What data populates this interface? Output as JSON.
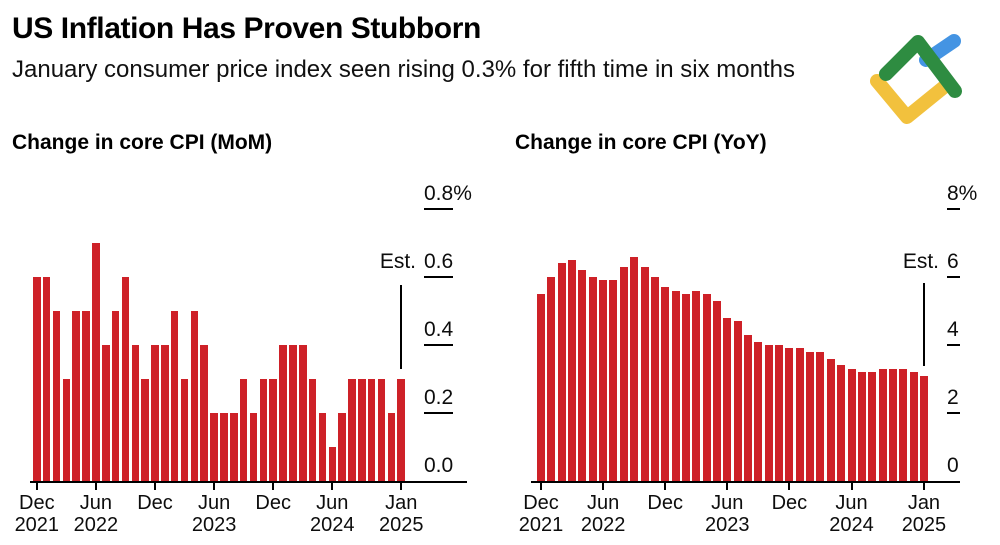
{
  "header": {
    "title": "US Inflation Has Proven Stubborn",
    "subtitle": "January consumer price index seen rising 0.3% for fifth time in six months"
  },
  "logo": {
    "name": "litefinance-watermark",
    "colors": {
      "green": "#2e8c41",
      "blue": "#4494e3",
      "yellow": "#f2c13d"
    }
  },
  "colors": {
    "bar_red": "#ce2128",
    "axis_black": "#000000",
    "background": "#ffffff"
  },
  "chart_data": [
    {
      "type": "bar",
      "title": "Change in core CPI (MoM)",
      "unit": "percent, month-over-month",
      "ylim": [
        0,
        0.8
      ],
      "grid": false,
      "legend": "none",
      "bar_color": "#ce2128",
      "categories": [
        "Dec 2021",
        "Jan 2022",
        "Feb 2022",
        "Mar 2022",
        "Apr 2022",
        "May 2022",
        "Jun 2022",
        "Jul 2022",
        "Aug 2022",
        "Sep 2022",
        "Oct 2022",
        "Nov 2022",
        "Dec 2022",
        "Jan 2023",
        "Feb 2023",
        "Mar 2023",
        "Apr 2023",
        "May 2023",
        "Jun 2023",
        "Jul 2023",
        "Aug 2023",
        "Sep 2023",
        "Oct 2023",
        "Nov 2023",
        "Dec 2023",
        "Jan 2024",
        "Feb 2024",
        "Mar 2024",
        "Apr 2024",
        "May 2024",
        "Jun 2024",
        "Jul 2024",
        "Aug 2024",
        "Sep 2024",
        "Oct 2024",
        "Nov 2024",
        "Dec 2024",
        "Jan 2025"
      ],
      "values": [
        0.6,
        0.6,
        0.5,
        0.3,
        0.5,
        0.5,
        0.7,
        0.4,
        0.5,
        0.6,
        0.4,
        0.3,
        0.4,
        0.4,
        0.5,
        0.3,
        0.5,
        0.4,
        0.2,
        0.2,
        0.2,
        0.3,
        0.2,
        0.3,
        0.3,
        0.4,
        0.4,
        0.4,
        0.3,
        0.2,
        0.1,
        0.2,
        0.3,
        0.3,
        0.3,
        0.3,
        0.2,
        0.3
      ],
      "est_label": "Est.",
      "est_index": 37,
      "est_value": 0.3,
      "yticks": [
        {
          "label": "0.8%",
          "value": 0.8
        },
        {
          "label": "0.6",
          "value": 0.6
        },
        {
          "label": "0.4",
          "value": 0.4
        },
        {
          "label": "0.2",
          "value": 0.2
        },
        {
          "label": "0.0",
          "value": 0.0
        }
      ],
      "xticks": [
        {
          "index": 0,
          "line1": "Dec",
          "line2": "2021"
        },
        {
          "index": 6,
          "line1": "Jun",
          "line2": "2022"
        },
        {
          "index": 12,
          "line1": "Dec",
          "line2": ""
        },
        {
          "index": 18,
          "line1": "Jun",
          "line2": "2023"
        },
        {
          "index": 24,
          "line1": "Dec",
          "line2": ""
        },
        {
          "index": 30,
          "line1": "Jun",
          "line2": "2024"
        },
        {
          "index": 37,
          "line1": "Jan",
          "line2": "2025"
        }
      ]
    },
    {
      "type": "bar",
      "title": "Change in core CPI (YoY)",
      "unit": "percent, year-over-year",
      "ylim": [
        0,
        8
      ],
      "grid": false,
      "legend": "none",
      "bar_color": "#ce2128",
      "categories": [
        "Dec 2021",
        "Jan 2022",
        "Feb 2022",
        "Mar 2022",
        "Apr 2022",
        "May 2022",
        "Jun 2022",
        "Jul 2022",
        "Aug 2022",
        "Sep 2022",
        "Oct 2022",
        "Nov 2022",
        "Dec 2022",
        "Jan 2023",
        "Feb 2023",
        "Mar 2023",
        "Apr 2023",
        "May 2023",
        "Jun 2023",
        "Jul 2023",
        "Aug 2023",
        "Sep 2023",
        "Oct 2023",
        "Nov 2023",
        "Dec 2023",
        "Jan 2024",
        "Feb 2024",
        "Mar 2024",
        "Apr 2024",
        "May 2024",
        "Jun 2024",
        "Jul 2024",
        "Aug 2024",
        "Sep 2024",
        "Oct 2024",
        "Nov 2024",
        "Dec 2024",
        "Jan 2025"
      ],
      "values": [
        5.5,
        6.0,
        6.4,
        6.5,
        6.2,
        6.0,
        5.9,
        5.9,
        6.3,
        6.6,
        6.3,
        6.0,
        5.7,
        5.6,
        5.5,
        5.6,
        5.5,
        5.3,
        4.8,
        4.7,
        4.3,
        4.1,
        4.0,
        4.0,
        3.9,
        3.9,
        3.8,
        3.8,
        3.6,
        3.4,
        3.3,
        3.2,
        3.2,
        3.3,
        3.3,
        3.3,
        3.2,
        3.1
      ],
      "est_label": "Est.",
      "est_index": 37,
      "est_value": 3.1,
      "yticks": [
        {
          "label": "8%",
          "value": 8
        },
        {
          "label": "6",
          "value": 6
        },
        {
          "label": "4",
          "value": 4
        },
        {
          "label": "2",
          "value": 2
        },
        {
          "label": "0",
          "value": 0
        }
      ],
      "xticks": [
        {
          "index": 0,
          "line1": "Dec",
          "line2": "2021"
        },
        {
          "index": 6,
          "line1": "Jun",
          "line2": "2022"
        },
        {
          "index": 12,
          "line1": "Dec",
          "line2": ""
        },
        {
          "index": 18,
          "line1": "Jun",
          "line2": "2023"
        },
        {
          "index": 24,
          "line1": "Dec",
          "line2": ""
        },
        {
          "index": 30,
          "line1": "Jun",
          "line2": "2024"
        },
        {
          "index": 37,
          "line1": "Jan",
          "line2": "2025"
        }
      ]
    }
  ]
}
